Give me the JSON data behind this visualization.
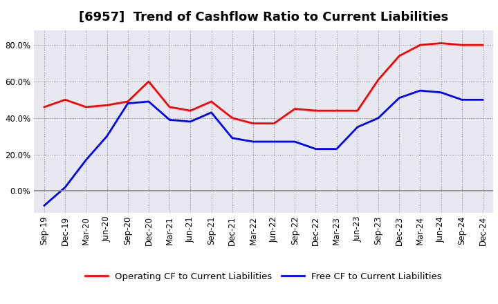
{
  "title": "[6957]  Trend of Cashflow Ratio to Current Liabilities",
  "x_labels": [
    "Sep-19",
    "Dec-19",
    "Mar-20",
    "Jun-20",
    "Sep-20",
    "Dec-20",
    "Mar-21",
    "Jun-21",
    "Sep-21",
    "Dec-21",
    "Mar-22",
    "Jun-22",
    "Sep-22",
    "Dec-22",
    "Mar-23",
    "Jun-23",
    "Sep-23",
    "Dec-23",
    "Mar-24",
    "Jun-24",
    "Sep-24",
    "Dec-24"
  ],
  "operating_cf": [
    0.46,
    0.5,
    0.46,
    0.47,
    0.49,
    0.6,
    0.46,
    0.44,
    0.49,
    0.4,
    0.37,
    0.37,
    0.45,
    0.44,
    0.44,
    0.44,
    0.61,
    0.74,
    0.8,
    0.81,
    0.8,
    0.8
  ],
  "free_cf": [
    -0.08,
    0.02,
    0.17,
    0.3,
    0.48,
    0.49,
    0.39,
    0.38,
    0.43,
    0.29,
    0.27,
    0.27,
    0.27,
    0.23,
    0.23,
    0.35,
    0.4,
    0.51,
    0.55,
    0.54,
    0.5,
    0.5
  ],
  "operating_color": "#ff0000",
  "free_color": "#0000ff",
  "background_color": "#ffffff",
  "plot_bg_color": "#e8e8f0",
  "grid_color": "#aaaaaa",
  "ylim": [
    -0.12,
    0.88
  ],
  "yticks": [
    0.0,
    0.2,
    0.4,
    0.6,
    0.8
  ],
  "legend_labels": [
    "Operating CF to Current Liabilities",
    "Free CF to Current Liabilities"
  ],
  "title_fontsize": 13,
  "axis_fontsize": 8.5,
  "legend_fontsize": 9.5
}
